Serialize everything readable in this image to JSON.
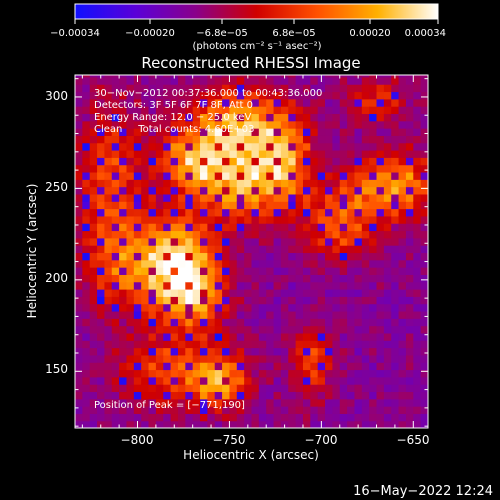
{
  "chart_data": {
    "type": "heatmap",
    "title": "Reconstructed RHESSI Image",
    "xlabel": "Heliocentric X (arcsec)",
    "ylabel": "Heliocentric Y (arcsec)",
    "xlim": [
      -834,
      -642
    ],
    "ylim": [
      119,
      312
    ],
    "x_ticks": [
      -800,
      -750,
      -700,
      -650
    ],
    "x_tick_labels": [
      "−800",
      "−750",
      "−700",
      "−650"
    ],
    "y_ticks": [
      150,
      200,
      250,
      300
    ],
    "y_tick_labels": [
      "150",
      "200",
      "250",
      "300"
    ],
    "colorbar": {
      "range": [
        -0.00034,
        0.00034
      ],
      "tick_labels": [
        "−0.00034",
        "−0.00020",
        "−6.8e−05",
        "6.8e−05",
        "0.00020",
        "0.00034"
      ],
      "units_text": "(photons cm⁻² s⁻¹ asec⁻²)",
      "colors": [
        "#1010ff",
        "#5a00d8",
        "#8a008a",
        "#d00000",
        "#ff5000",
        "#ffb000",
        "#ffffff"
      ]
    },
    "annotations": [
      "30−Nov−2012 00:37:36.000 to 00:43:36.000",
      "Detectors: 3F 5F 6F 7F 8F, Att 0",
      "Energy Range: 12.0 − 25.0 keV",
      "Clean     Total counts: 4.60E+03"
    ],
    "peak_label": "Position of Peak = [−771,190]",
    "peak_position": [
      -771,
      190
    ],
    "bright_regions": [
      {
        "x": -745,
        "y": 285,
        "sx": 18,
        "sy": 14,
        "amp": 1.0
      },
      {
        "x": -770,
        "y": 265,
        "sx": 14,
        "sy": 12,
        "amp": 0.85
      },
      {
        "x": -742,
        "y": 252,
        "sx": 16,
        "sy": 14,
        "amp": 0.95
      },
      {
        "x": -720,
        "y": 268,
        "sx": 10,
        "sy": 16,
        "amp": 0.75
      },
      {
        "x": -776,
        "y": 212,
        "sx": 14,
        "sy": 16,
        "amp": 0.95
      },
      {
        "x": -770,
        "y": 190,
        "sx": 12,
        "sy": 12,
        "amp": 0.8
      },
      {
        "x": -800,
        "y": 208,
        "sx": 18,
        "sy": 18,
        "amp": 0.65
      },
      {
        "x": -815,
        "y": 255,
        "sx": 12,
        "sy": 30,
        "amp": 0.6
      },
      {
        "x": -660,
        "y": 252,
        "sx": 16,
        "sy": 12,
        "amp": 0.9
      },
      {
        "x": -690,
        "y": 232,
        "sx": 14,
        "sy": 14,
        "amp": 0.7
      },
      {
        "x": -780,
        "y": 150,
        "sx": 22,
        "sy": 14,
        "amp": 0.6
      },
      {
        "x": -755,
        "y": 145,
        "sx": 10,
        "sy": 10,
        "amp": 0.75
      },
      {
        "x": -705,
        "y": 155,
        "sx": 8,
        "sy": 14,
        "amp": 0.6
      },
      {
        "x": -670,
        "y": 298,
        "sx": 12,
        "sy": 8,
        "amp": 0.5
      }
    ]
  },
  "footer": {
    "timestamp": "16−May−2022 12:24"
  }
}
